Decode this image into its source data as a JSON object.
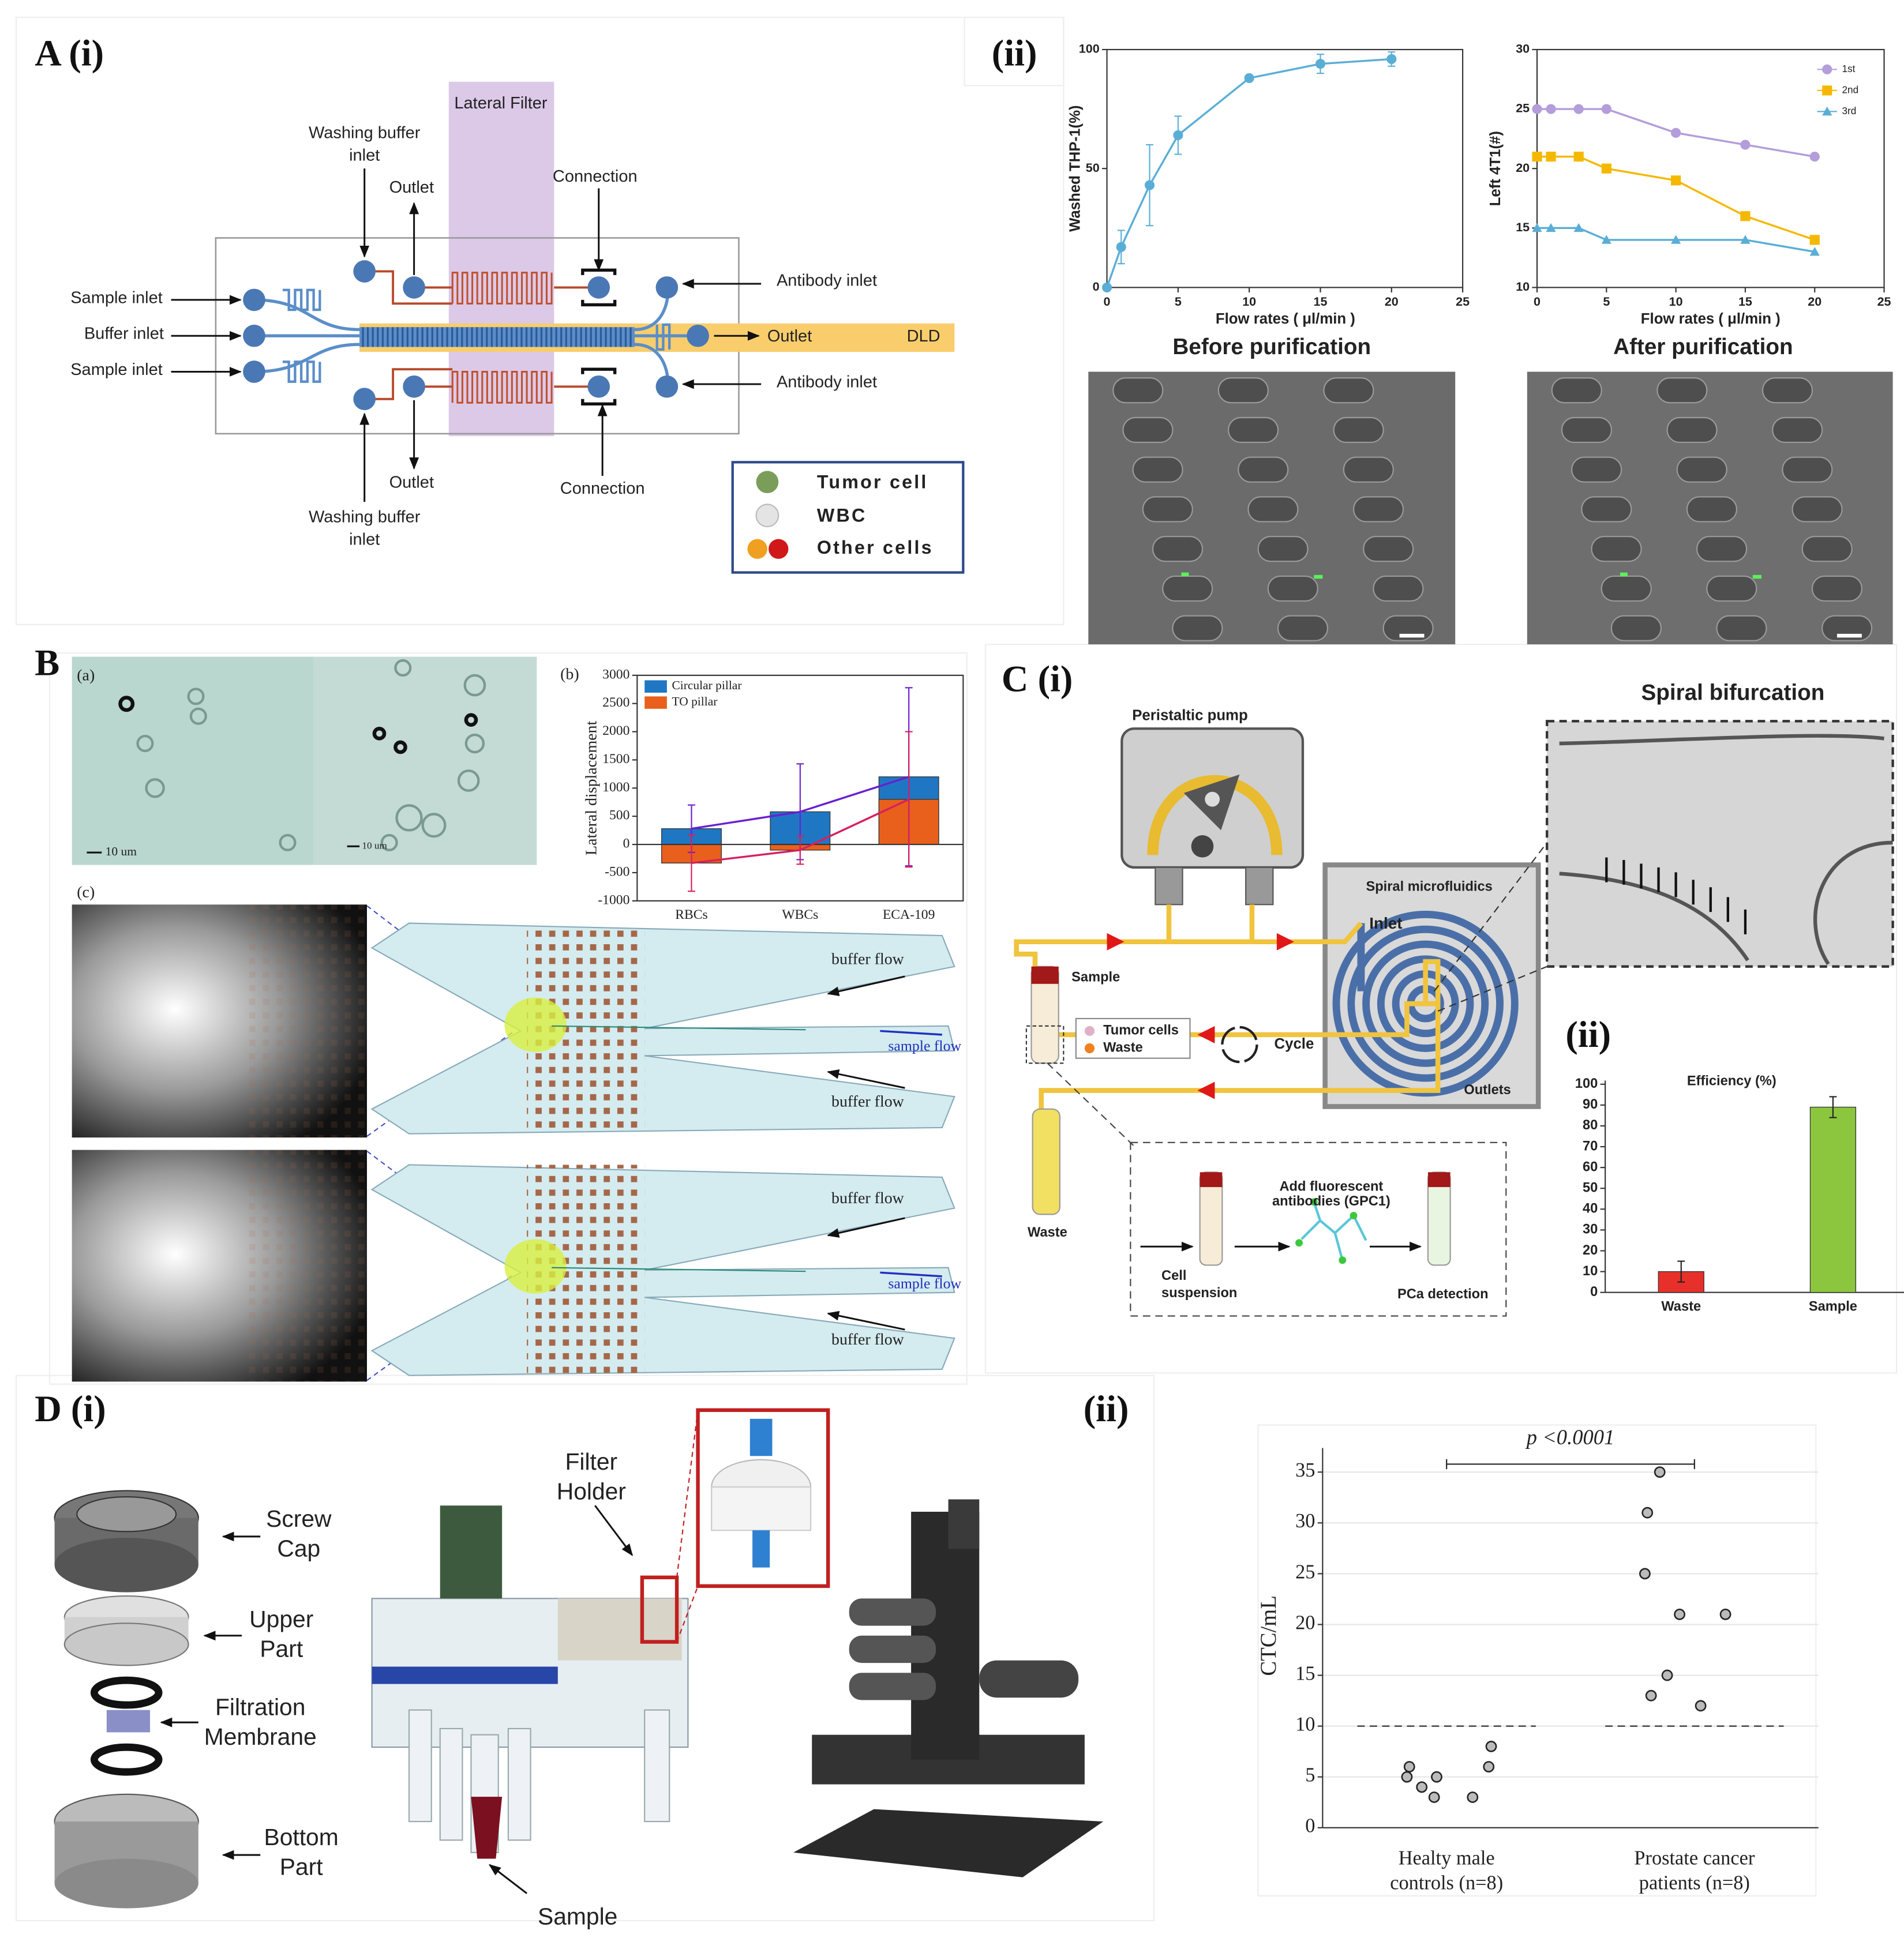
{
  "panel_labels": {
    "a_i": "A (i)",
    "a_ii": "(ii)",
    "b": "B",
    "c_i": "C (i)",
    "c_ii": "(ii)",
    "d_i": "D (i)",
    "d_ii": "(ii)"
  },
  "diagram_a": {
    "lateral_filter": "Lateral Filter",
    "washing_top": [
      "Washing buffer",
      "inlet"
    ],
    "outlet_top": "Outlet",
    "connection_top": "Connection",
    "sample_inlet_top": "Sample inlet",
    "buffer_inlet": "Buffer inlet",
    "sample_inlet_bottom": "Sample inlet",
    "antibody_top": "Antibody inlet",
    "outlet_main": "Outlet",
    "dld": "DLD",
    "antibody_bottom": "Antibody inlet",
    "outlet_bottom": "Outlet",
    "connection_bottom": "Connection",
    "washing_bottom": [
      "Washing buffer",
      "inlet"
    ],
    "legend": [
      "Tumor cell",
      "WBC",
      "Other cells"
    ]
  },
  "micrographs_a": {
    "before": "Before purification",
    "after": "After purification"
  },
  "panel_b": {
    "a": "(a)",
    "b": "(b)",
    "c": "(c)",
    "scale_1": "10 um",
    "scale_2": "10 um",
    "buffer_flow": [
      "buffer flow",
      "buffer flow",
      "buffer flow",
      "buffer flow"
    ],
    "sample_flow": [
      "sample flow",
      "sample flow"
    ]
  },
  "panel_c": {
    "pump": "Peristaltic pump",
    "bifurcation": "Spiral bifurcation",
    "spiral": "Spiral microfluidics",
    "inlet": "Inlet",
    "sample": "Sample",
    "legend": [
      "Tumor cells",
      "Waste"
    ],
    "cycle": "Cycle",
    "outlets": "Outlets",
    "waste": "Waste",
    "cell_suspension": [
      "Cell",
      "suspension"
    ],
    "add_antibodies": [
      "Add fluorescent",
      "antibodies (GPC1)"
    ],
    "detection": "PCa detection"
  },
  "panel_d": {
    "screw_cap": [
      "Screw",
      "Cap"
    ],
    "upper_part": [
      "Upper",
      "Part"
    ],
    "membrane": [
      "Filtration",
      "Membrane"
    ],
    "bottom_part": [
      "Bottom",
      "Part"
    ],
    "filter_holder": [
      "Filter",
      "Holder"
    ],
    "sample": "Sample"
  },
  "chart_data": [
    {
      "type": "line",
      "y_label": "Washed THP-1(%)",
      "x_label": "Flow rates ( μl/min )",
      "x": [
        0,
        1,
        3,
        5,
        10,
        15,
        20
      ],
      "values": [
        0,
        17,
        43,
        64,
        88,
        94,
        96
      ],
      "errors": [
        0,
        7,
        17,
        8,
        0,
        4,
        3
      ],
      "color": "#5aaed6",
      "xlim": [
        0,
        25
      ],
      "xticks": [
        0,
        5,
        10,
        15,
        20,
        25
      ],
      "ylim": [
        0,
        100
      ],
      "yticks": [
        0,
        50,
        100
      ]
    },
    {
      "type": "line",
      "y_label": "Left 4T1(#)",
      "x_label": "Flow rates ( μl/min )",
      "x": [
        0,
        1,
        3,
        5,
        10,
        15,
        20
      ],
      "series": [
        {
          "name": "1st",
          "color": "#b39ddb",
          "marker": "circle",
          "values": [
            25,
            25,
            25,
            25,
            23,
            22,
            21
          ]
        },
        {
          "name": "2nd",
          "color": "#f5b800",
          "marker": "square",
          "values": [
            21,
            21,
            21,
            20,
            19,
            16,
            14
          ]
        },
        {
          "name": "3rd",
          "color": "#5aaed6",
          "marker": "triangle",
          "values": [
            15,
            15,
            15,
            14,
            14,
            14,
            13
          ]
        }
      ],
      "xlim": [
        0,
        25
      ],
      "xticks": [
        0,
        5,
        10,
        15,
        20,
        25
      ],
      "ylim": [
        10,
        30
      ],
      "yticks": [
        10,
        15,
        20,
        25,
        30
      ],
      "legend": "upper right"
    },
    {
      "type": "bar",
      "y_label": "Lateral displacement",
      "categories": [
        "RBCs",
        "WBCs",
        "ECA-109"
      ],
      "series": [
        {
          "name": "Circular pillar",
          "color": "#1f77c4",
          "line_color": "#6a1fd1",
          "values": [
            280,
            580,
            1200
          ],
          "errors": [
            420,
            850,
            1580
          ]
        },
        {
          "name": "TO pillar",
          "color": "#e8601c",
          "line_color": "#d62060",
          "values": [
            -330,
            -100,
            800
          ],
          "errors": [
            500,
            250,
            1200
          ]
        }
      ],
      "ylim": [
        -1000,
        3000
      ],
      "yticks": [
        -1000,
        -500,
        0,
        500,
        1000,
        1500,
        2000,
        2500,
        3000
      ],
      "legend": "upper left"
    },
    {
      "type": "bar",
      "title": "Efficiency (%)",
      "categories": [
        "Waste",
        "Sample"
      ],
      "values": [
        10,
        89
      ],
      "errors": [
        5,
        5
      ],
      "colors": [
        "#e8302a",
        "#8cc63f"
      ],
      "ylim": [
        0,
        100
      ],
      "yticks": [
        0,
        10,
        20,
        30,
        40,
        50,
        60,
        70,
        80,
        90,
        100
      ]
    },
    {
      "type": "strip",
      "y_label": "CTC/mL",
      "categories": [
        [
          "Healty male",
          "controls (n=8)"
        ],
        [
          "Prostate cancer",
          "patients (n=8)"
        ]
      ],
      "groups": [
        [
          6,
          5,
          4,
          3,
          5,
          3,
          8,
          6
        ],
        [
          35,
          31,
          25,
          21,
          21,
          15,
          13,
          12
        ]
      ],
      "threshold": 10,
      "annotation": "p <0.0001",
      "ylim": [
        0,
        37
      ],
      "yticks": [
        0,
        5,
        10,
        15,
        20,
        25,
        30,
        35
      ],
      "grid": true
    }
  ]
}
